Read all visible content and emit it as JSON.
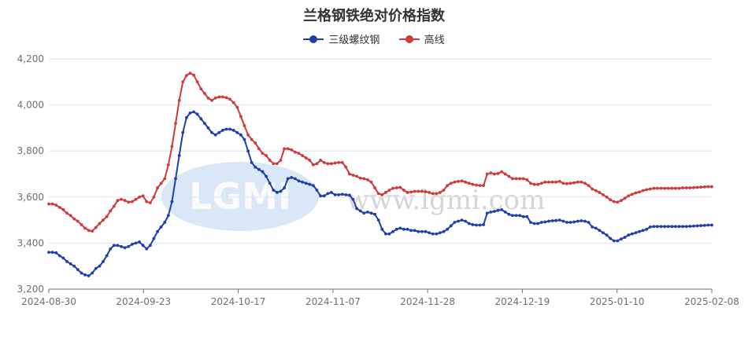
{
  "chart_data": {
    "type": "line",
    "title": "兰格钢铁绝对价格指数",
    "xlabel": "",
    "ylabel": "",
    "ylim": [
      3200,
      4200
    ],
    "yticks": [
      "3,200",
      "3,400",
      "3,600",
      "3,800",
      "4,000",
      "4,200"
    ],
    "x_tick_labels": [
      "2024-08-30",
      "2024-09-23",
      "2024-10-17",
      "2024-11-07",
      "2024-11-28",
      "2024-12-19",
      "2025-01-10",
      "2025-02-08"
    ],
    "grid": true,
    "legend_position": "top-center",
    "watermark": {
      "logo_text": "LGMI",
      "site_text": "www.lgmi.com"
    },
    "series": [
      {
        "name": "三级螺纹钢",
        "color": "#1f3fad",
        "values": [
          3360,
          3360,
          3358,
          3345,
          3335,
          3320,
          3310,
          3300,
          3285,
          3270,
          3262,
          3258,
          3270,
          3290,
          3300,
          3320,
          3345,
          3375,
          3390,
          3390,
          3385,
          3380,
          3385,
          3395,
          3400,
          3405,
          3390,
          3375,
          3390,
          3420,
          3450,
          3470,
          3490,
          3520,
          3580,
          3680,
          3780,
          3880,
          3945,
          3965,
          3970,
          3960,
          3940,
          3920,
          3900,
          3880,
          3870,
          3880,
          3890,
          3895,
          3895,
          3890,
          3880,
          3870,
          3850,
          3800,
          3750,
          3730,
          3720,
          3710,
          3690,
          3660,
          3630,
          3620,
          3625,
          3640,
          3680,
          3685,
          3680,
          3670,
          3665,
          3660,
          3655,
          3650,
          3630,
          3605,
          3605,
          3615,
          3620,
          3610,
          3610,
          3612,
          3610,
          3608,
          3590,
          3550,
          3540,
          3530,
          3535,
          3530,
          3525,
          3500,
          3460,
          3440,
          3440,
          3450,
          3460,
          3465,
          3460,
          3460,
          3455,
          3455,
          3450,
          3450,
          3450,
          3445,
          3440,
          3440,
          3445,
          3450,
          3460,
          3475,
          3490,
          3495,
          3500,
          3495,
          3485,
          3480,
          3478,
          3478,
          3480,
          3530,
          3535,
          3538,
          3542,
          3545,
          3535,
          3525,
          3520,
          3520,
          3520,
          3515,
          3515,
          3490,
          3485,
          3485,
          3490,
          3492,
          3495,
          3497,
          3498,
          3500,
          3495,
          3490,
          3490,
          3492,
          3495,
          3497,
          3495,
          3490,
          3470,
          3465,
          3455,
          3445,
          3435,
          3420,
          3410,
          3410,
          3418,
          3425,
          3435,
          3440,
          3445,
          3450,
          3455,
          3460,
          3470,
          3472,
          3472,
          3472,
          3472,
          3472,
          3472,
          3472,
          3472,
          3472,
          3472,
          3473,
          3474,
          3475,
          3476,
          3477,
          3478,
          3478
        ]
      },
      {
        "name": "高线",
        "color": "#d03a3a",
        "values": [
          3570,
          3570,
          3565,
          3555,
          3545,
          3530,
          3520,
          3505,
          3495,
          3480,
          3465,
          3455,
          3452,
          3468,
          3485,
          3500,
          3515,
          3540,
          3560,
          3585,
          3590,
          3585,
          3578,
          3580,
          3590,
          3600,
          3605,
          3580,
          3575,
          3600,
          3640,
          3660,
          3680,
          3740,
          3820,
          3920,
          4020,
          4100,
          4128,
          4138,
          4130,
          4100,
          4070,
          4050,
          4030,
          4020,
          4030,
          4035,
          4035,
          4032,
          4025,
          4010,
          3990,
          3950,
          3910,
          3870,
          3850,
          3835,
          3810,
          3790,
          3780,
          3760,
          3745,
          3745,
          3760,
          3810,
          3810,
          3805,
          3795,
          3790,
          3780,
          3770,
          3760,
          3740,
          3745,
          3760,
          3750,
          3745,
          3745,
          3748,
          3750,
          3750,
          3730,
          3700,
          3695,
          3690,
          3682,
          3680,
          3675,
          3665,
          3640,
          3615,
          3610,
          3620,
          3630,
          3638,
          3640,
          3642,
          3630,
          3620,
          3622,
          3625,
          3625,
          3625,
          3623,
          3620,
          3615,
          3615,
          3620,
          3630,
          3650,
          3660,
          3665,
          3668,
          3670,
          3665,
          3660,
          3655,
          3652,
          3650,
          3650,
          3700,
          3705,
          3700,
          3702,
          3710,
          3700,
          3690,
          3680,
          3680,
          3680,
          3680,
          3675,
          3660,
          3655,
          3655,
          3660,
          3665,
          3665,
          3665,
          3665,
          3668,
          3660,
          3658,
          3660,
          3662,
          3665,
          3665,
          3660,
          3650,
          3635,
          3628,
          3620,
          3610,
          3600,
          3588,
          3580,
          3578,
          3585,
          3595,
          3605,
          3612,
          3618,
          3622,
          3628,
          3632,
          3635,
          3638,
          3638,
          3638,
          3638,
          3638,
          3638,
          3638,
          3638,
          3640,
          3640,
          3640,
          3641,
          3642,
          3643,
          3644,
          3645,
          3645
        ]
      }
    ]
  }
}
